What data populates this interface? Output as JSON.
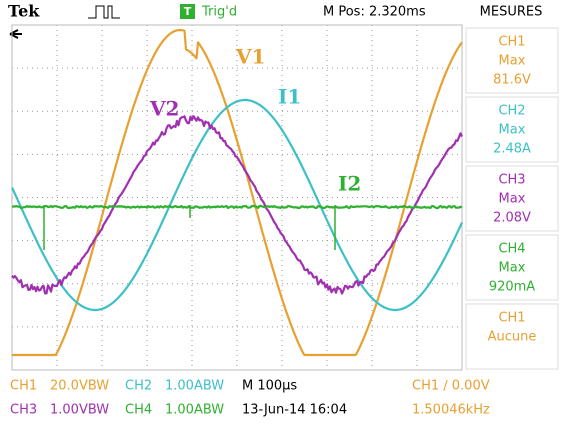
{
  "header": {
    "brand": "Tek",
    "trigger_badge": "T",
    "trigger_status": "Trig'd",
    "position": "M Pos: 2.320ms",
    "menu_title": "MESURES"
  },
  "measures": [
    {
      "channel": "CH1",
      "type": "Max",
      "value": "81.6V"
    },
    {
      "channel": "CH2",
      "type": "Max",
      "value": "2.48A"
    },
    {
      "channel": "CH3",
      "type": "Max",
      "value": "2.08V"
    },
    {
      "channel": "CH4",
      "type": "Max",
      "value": "920mA"
    },
    {
      "channel": "CH1",
      "type": "Aucune"
    }
  ],
  "trace_labels": {
    "v1": "V1",
    "i1": "I1",
    "v2": "V2",
    "i2": "I2"
  },
  "footer": {
    "ch1": "CH1",
    "ch1_scale": "20.0VBW",
    "ch2": "CH2",
    "ch2_scale": "1.00ABW",
    "timebase": "M 100µs",
    "trigger": "CH1 ∕ 0.00V",
    "ch3": "CH3",
    "ch3_scale": "1.00VBW",
    "ch4": "CH4",
    "ch4_scale": "1.00ABW",
    "datetime": "13-Jun-14 16:04",
    "frequency": "1.50046kHz"
  }
}
